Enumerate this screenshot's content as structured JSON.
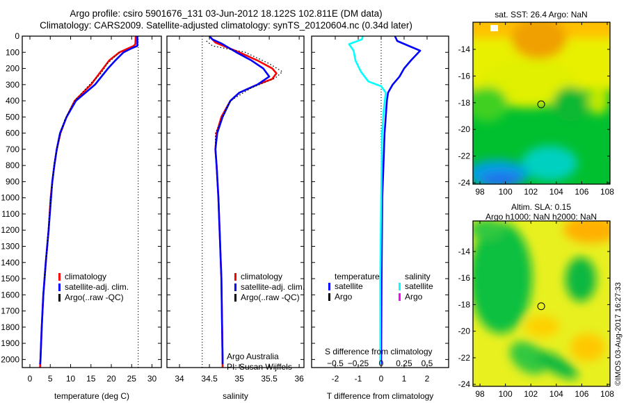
{
  "titles": {
    "line1": "Argo profile: csiro 5901676_131 03-Jun-2012 18.122S 102.811E (DM data)",
    "line2": "Climatology: CARS2009. Satellite-adjusted climatology: synTS_20120604.nc (0.34d later)"
  },
  "colors": {
    "climatology": "#ff0000",
    "satellite": "#0000ff",
    "argo": "#000000",
    "sal_satellite": "#00ffff",
    "sal_argo": "#ff00ff"
  },
  "credit": "©IMOS 03-Aug-2017 16:27:33",
  "chart_data": [
    {
      "type": "line",
      "id": "temperature",
      "xlabel": "temperature (deg C)",
      "ylabel": "",
      "xlim": [
        -1.88,
        32.3
      ],
      "ylim": [
        0,
        2050
      ],
      "yreversed": true,
      "xticks": [
        0,
        5,
        10,
        15,
        20,
        25,
        30
      ],
      "yticks": [
        0,
        100,
        200,
        300,
        400,
        500,
        600,
        700,
        800,
        900,
        1000,
        1100,
        1200,
        1300,
        1400,
        1500,
        1600,
        1700,
        1800,
        1900,
        2000
      ],
      "reference_x": 26.6,
      "legend": [
        "climatology",
        "satellite-adj. clim.",
        "Argo(..raw -QC)"
      ],
      "series": [
        {
          "name": "climatology",
          "color": "#ff0000",
          "points": [
            [
              26,
              0
            ],
            [
              25.9,
              50
            ],
            [
              25.5,
              60
            ],
            [
              22,
              100
            ],
            [
              19.5,
              150
            ],
            [
              18,
              200
            ],
            [
              15,
              300
            ],
            [
              11,
              400
            ],
            [
              9,
              500
            ],
            [
              7.5,
              600
            ],
            [
              6.6,
              700
            ],
            [
              6,
              800
            ],
            [
              5.5,
              900
            ],
            [
              5.1,
              1000
            ],
            [
              4.6,
              1200
            ],
            [
              3.9,
              1400
            ],
            [
              3.3,
              1600
            ],
            [
              2.9,
              1800
            ],
            [
              2.6,
              2000
            ],
            [
              2.5,
              2050
            ]
          ]
        },
        {
          "name": "satellite-adj. clim.",
          "color": "#0000ff",
          "points": [
            [
              26.4,
              0
            ],
            [
              26.4,
              60
            ],
            [
              25,
              75
            ],
            [
              23,
              100
            ],
            [
              21,
              150
            ],
            [
              19.2,
              200
            ],
            [
              16,
              300
            ],
            [
              11.3,
              400
            ],
            [
              9,
              500
            ],
            [
              7.4,
              600
            ],
            [
              6.6,
              700
            ],
            [
              6,
              800
            ],
            [
              5.5,
              900
            ],
            [
              5.2,
              1000
            ],
            [
              4.6,
              1200
            ],
            [
              3.9,
              1400
            ],
            [
              3.3,
              1600
            ],
            [
              2.9,
              1800
            ],
            [
              2.6,
              2000
            ],
            [
              2.5,
              2030
            ]
          ]
        },
        {
          "name": "Argo(..raw -QC)",
          "color": "#000000",
          "dotted": true,
          "points": [
            [
              22,
              100
            ],
            [
              19,
              170
            ],
            [
              17.5,
              230
            ],
            [
              15,
              290
            ],
            [
              11,
              400
            ],
            [
              8.5,
              520
            ],
            [
              7,
              650
            ],
            [
              6,
              780
            ],
            [
              5.3,
              950
            ],
            [
              4.8,
              1100
            ],
            [
              3.6,
              1500
            ]
          ]
        }
      ]
    },
    {
      "type": "line",
      "id": "salinity",
      "xlabel": "salinity",
      "xlim": [
        33.79,
        36.08
      ],
      "ylim": [
        0,
        2050
      ],
      "yreversed": true,
      "xticks": [
        34,
        34.5,
        35,
        35.5,
        36
      ],
      "reference_x": 34.38,
      "legend": [
        "climatology",
        "satellite-adj. clim.",
        "Argo(..raw -QC)"
      ],
      "annotations": [
        "Argo Australia",
        "PI: Susan Wijffels"
      ],
      "series": [
        {
          "name": "climatology",
          "color": "#ff0000",
          "points": [
            [
              34.5,
              0
            ],
            [
              34.6,
              40
            ],
            [
              35.0,
              100
            ],
            [
              35.3,
              150
            ],
            [
              35.55,
              200
            ],
            [
              35.62,
              230
            ],
            [
              35.55,
              265
            ],
            [
              35.3,
              300
            ],
            [
              35.0,
              350
            ],
            [
              34.85,
              400
            ],
            [
              34.7,
              500
            ],
            [
              34.62,
              600
            ],
            [
              34.6,
              700
            ],
            [
              34.62,
              800
            ],
            [
              34.65,
              1000
            ],
            [
              34.7,
              1500
            ],
            [
              34.72,
              2000
            ],
            [
              34.72,
              2050
            ]
          ]
        },
        {
          "name": "satellite-adj. clim.",
          "color": "#0000ff",
          "points": [
            [
              34.5,
              0
            ],
            [
              34.55,
              20
            ],
            [
              34.7,
              45
            ],
            [
              34.95,
              100
            ],
            [
              35.2,
              150
            ],
            [
              35.4,
              200
            ],
            [
              35.5,
              250
            ],
            [
              35.3,
              300
            ],
            [
              35.0,
              350
            ],
            [
              34.85,
              400
            ],
            [
              34.72,
              500
            ],
            [
              34.63,
              600
            ],
            [
              34.6,
              700
            ],
            [
              34.62,
              800
            ],
            [
              34.65,
              1000
            ],
            [
              34.7,
              1500
            ],
            [
              34.72,
              2000
            ],
            [
              34.72,
              2030
            ]
          ]
        },
        {
          "name": "Argo(..raw -QC)",
          "color": "#000000",
          "dotted": true,
          "points": [
            [
              34.45,
              30
            ],
            [
              34.55,
              60
            ],
            [
              35.1,
              100
            ],
            [
              35.5,
              170
            ],
            [
              35.72,
              220
            ],
            [
              35.6,
              260
            ],
            [
              35.2,
              320
            ],
            [
              34.85,
              400
            ],
            [
              34.6,
              600
            ],
            [
              34.6,
              700
            ]
          ]
        }
      ]
    },
    {
      "type": "line",
      "id": "difference",
      "xlabel": "T difference from climatology",
      "xlabel_top": "S difference from climatology",
      "xlim": [
        -3.03,
        2.94
      ],
      "ylim": [
        0,
        2050
      ],
      "yreversed": true,
      "xticks": [
        -2,
        -1,
        0,
        1,
        2
      ],
      "xticks_top": [
        -0.5,
        -0.25,
        0,
        0.25,
        0.5
      ],
      "s_to_t_scale": 4,
      "reference_x": 0,
      "legend": {
        "temperature": "temperature",
        "salinity": "salinity",
        "items": [
          "satellite",
          "Argo",
          "satellite",
          "Argo"
        ]
      },
      "series": [
        {
          "name": "temperature satellite",
          "color": "#0000ff",
          "points": [
            [
              0.6,
              0
            ],
            [
              0.7,
              30
            ],
            [
              1.2,
              60
            ],
            [
              1.7,
              90
            ],
            [
              1.3,
              150
            ],
            [
              1.0,
              200
            ],
            [
              0.8,
              250
            ],
            [
              0.5,
              300
            ],
            [
              0.3,
              350
            ],
            [
              0.25,
              400
            ],
            [
              0.2,
              500
            ],
            [
              0.15,
              600
            ],
            [
              0.1,
              800
            ],
            [
              0.05,
              1000
            ],
            [
              0.02,
              1500
            ],
            [
              0,
              2030
            ]
          ]
        },
        {
          "name": "salinity satellite",
          "color": "#00ffff",
          "points": [
            [
              -0.2,
              0
            ],
            [
              -0.21,
              20
            ],
            [
              -0.35,
              50
            ],
            [
              -0.3,
              90
            ],
            [
              -0.28,
              150
            ],
            [
              -0.22,
              220
            ],
            [
              -0.14,
              280
            ],
            [
              0,
              310
            ],
            [
              0.05,
              350
            ],
            [
              0.03,
              450
            ],
            [
              0.01,
              600
            ],
            [
              0,
              1000
            ],
            [
              -0.01,
              1500
            ],
            [
              -0.01,
              2030
            ]
          ]
        }
      ]
    }
  ],
  "maps": [
    {
      "title": [
        "sat. SST: 26.4 Argo: NaN"
      ],
      "lon_range": [
        97.45,
        108.22
      ],
      "lat_range": [
        -24.1,
        -11.97
      ],
      "xticks": [
        98,
        100,
        102,
        104,
        106,
        108
      ],
      "yticks": [
        -14,
        -16,
        -18,
        -20,
        -22,
        -24
      ],
      "marker": {
        "lon": 102.811,
        "lat": -18.122
      }
    },
    {
      "title": [
        "Altim. SLA: 0.15",
        "Argo h1000: NaN h2000: NaN"
      ],
      "lon_range": [
        97.45,
        108.22
      ],
      "lat_range": [
        -24.15,
        -11.7
      ],
      "xticks": [
        98,
        100,
        102,
        104,
        106,
        108
      ],
      "yticks": [
        -14,
        -16,
        -18,
        -20,
        -22,
        -24
      ],
      "marker": {
        "lon": 102.811,
        "lat": -18.122
      }
    }
  ]
}
